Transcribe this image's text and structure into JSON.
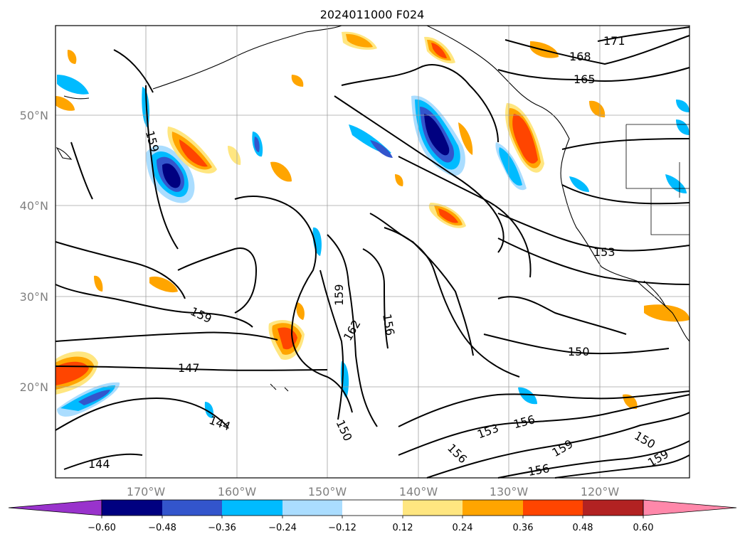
{
  "title": "2024011000 F024",
  "lat_labels": [
    "50°N",
    "40°N",
    "30°N",
    "20°N"
  ],
  "lon_labels": [
    "170°W",
    "160°W",
    "150°W",
    "140°W",
    "130°W",
    "120°W"
  ],
  "contour_labels": [
    "171",
    "168",
    "165",
    "159",
    "153",
    "159",
    "162",
    "156",
    "159",
    "150",
    "147",
    "144",
    "150",
    "153",
    "156",
    "159",
    "156",
    "150",
    "156",
    "159",
    "144"
  ],
  "colorbar": {
    "ticks": [
      "−0.60",
      "−0.48",
      "−0.36",
      "−0.24",
      "−0.12",
      "0.12",
      "0.24",
      "0.36",
      "0.48",
      "0.60"
    ],
    "colors": {
      "under": "#9933cc",
      "bins": [
        "#000080",
        "#3355cc",
        "#00bbff",
        "#aaddff",
        "#ffffff",
        "#ffe680",
        "#ffa500",
        "#ff4500",
        "#b22222",
        "#ff88aa"
      ],
      "over": "#ff88aa"
    }
  },
  "colors": {
    "negative_core": "#000080",
    "negative_mid": "#3355cc",
    "negative_light": "#00bbff",
    "negative_pale": "#aaddff",
    "positive_pale": "#ffe680",
    "positive_mid": "#ffa500",
    "positive_strong": "#ff4500",
    "contour": "#000000",
    "grid": "#a0a0a0"
  }
}
